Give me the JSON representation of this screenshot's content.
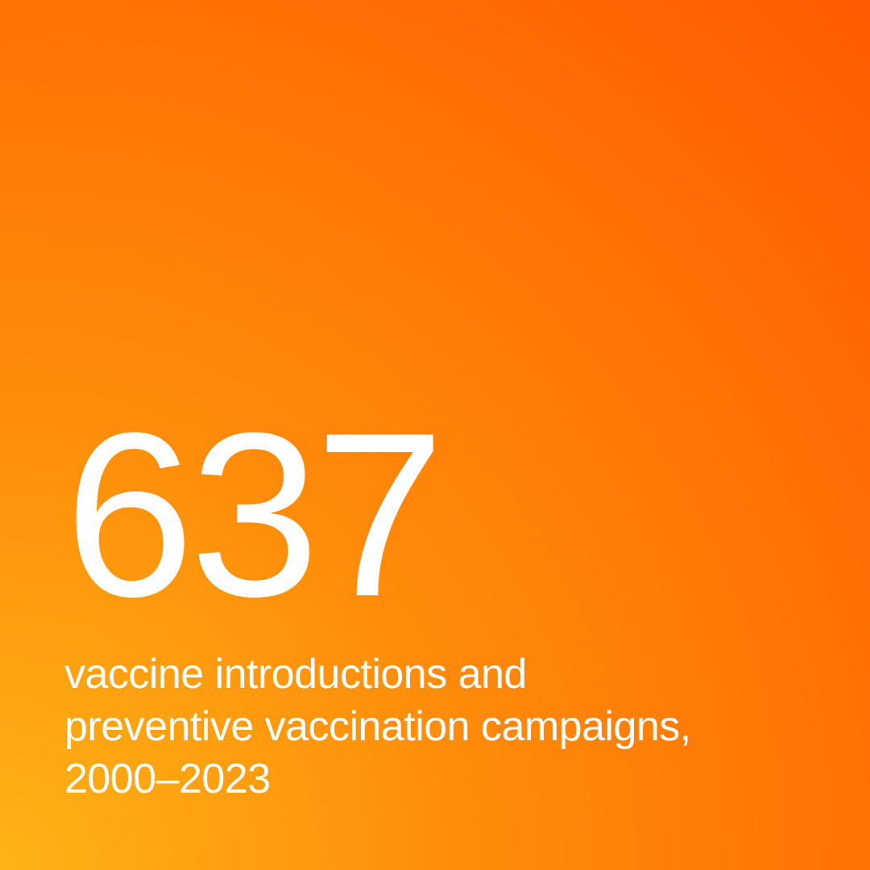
{
  "card": {
    "statistic": "637",
    "description": "vaccine introductions and preventive vaccination campaigns, 2000–2023",
    "background_gradient": {
      "type": "radial",
      "position": "bottom left",
      "start_color": "#ffb315",
      "mid_color": "#ff8a0a",
      "end_color": "#ff5a00"
    },
    "text_color": "#ffffff",
    "stat_fontsize": 290,
    "stat_fontweight": 300,
    "description_fontsize": 52,
    "description_fontweight": 400
  }
}
